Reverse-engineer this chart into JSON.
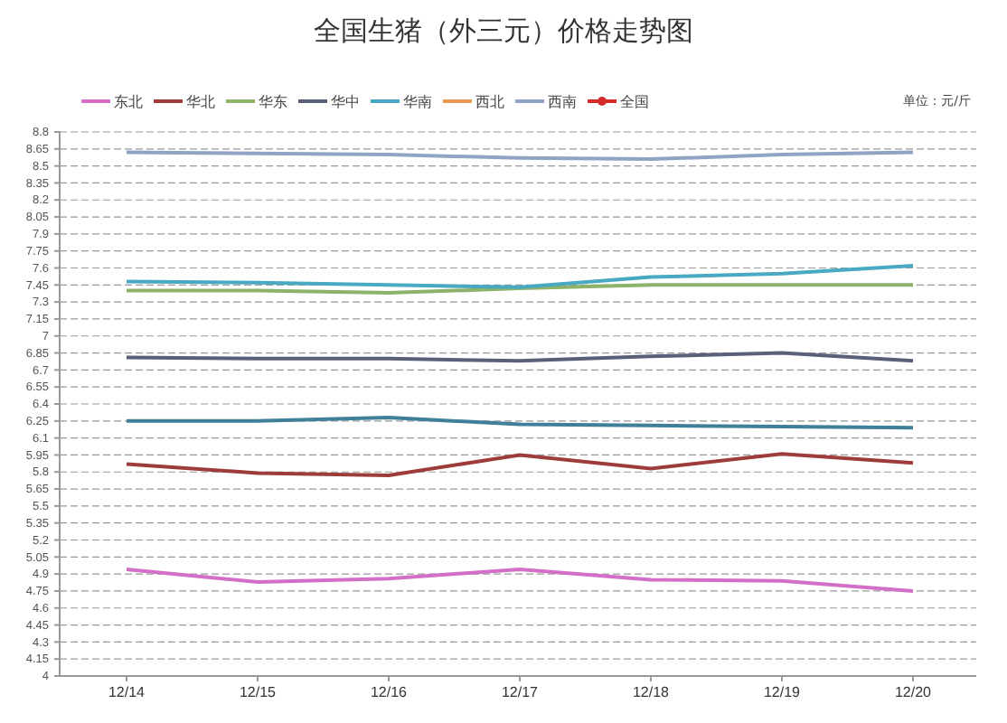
{
  "chart_data": {
    "type": "line",
    "title": "全国生猪（外三元）价格走势图",
    "categories": [
      "12/14",
      "12/15",
      "12/16",
      "12/17",
      "12/18",
      "12/19",
      "12/20"
    ],
    "series": [
      {
        "name": "东北",
        "color": "#d36fc6",
        "values": [
          4.94,
          4.83,
          4.86,
          4.94,
          4.85,
          4.84,
          4.75
        ]
      },
      {
        "name": "华北",
        "color": "#9e3b3b",
        "values": [
          5.87,
          5.79,
          5.77,
          5.95,
          5.83,
          5.96,
          5.88
        ]
      },
      {
        "name": "华东",
        "color": "#8db36a",
        "values": [
          7.4,
          7.4,
          7.38,
          7.42,
          7.45,
          7.45,
          7.45
        ]
      },
      {
        "name": "华中",
        "color": "#5a5f7a",
        "values": [
          6.81,
          6.8,
          6.8,
          6.78,
          6.82,
          6.85,
          6.78
        ]
      },
      {
        "name": "华南",
        "color": "#4aa9c2",
        "values": [
          7.48,
          7.47,
          7.45,
          7.43,
          7.52,
          7.55,
          7.62
        ]
      },
      {
        "name": "西北",
        "color": "#e89a55",
        "values": [
          null,
          null,
          null,
          null,
          null,
          null,
          null
        ]
      },
      {
        "name": "西南",
        "color": "#8fa4c4",
        "values": [
          8.62,
          8.61,
          8.6,
          8.57,
          8.56,
          8.6,
          8.62
        ]
      },
      {
        "name": "全国",
        "color": "#d42a2a",
        "marker": "circle",
        "values": [
          null,
          null,
          null,
          null,
          null,
          null,
          null
        ]
      },
      {
        "color": "#3f7f9a",
        "values": [
          6.25,
          6.25,
          6.28,
          6.22,
          6.21,
          6.2,
          6.19
        ]
      }
    ],
    "ylim": [
      4,
      8.8
    ],
    "yticks": [
      4,
      4.15,
      4.3,
      4.45,
      4.6,
      4.75,
      4.9,
      5.05,
      5.2,
      5.35,
      5.5,
      5.65,
      5.8,
      5.95,
      6.1,
      6.25,
      6.4,
      6.55,
      6.7,
      6.85,
      7,
      7.15,
      7.3,
      7.45,
      7.6,
      7.75,
      7.9,
      8.05,
      8.2,
      8.35,
      8.5,
      8.65,
      8.8
    ],
    "grid": "y",
    "legend": "top",
    "marker": "none",
    "line_style": "solid",
    "annotations": [
      "单位：元/斤"
    ]
  }
}
